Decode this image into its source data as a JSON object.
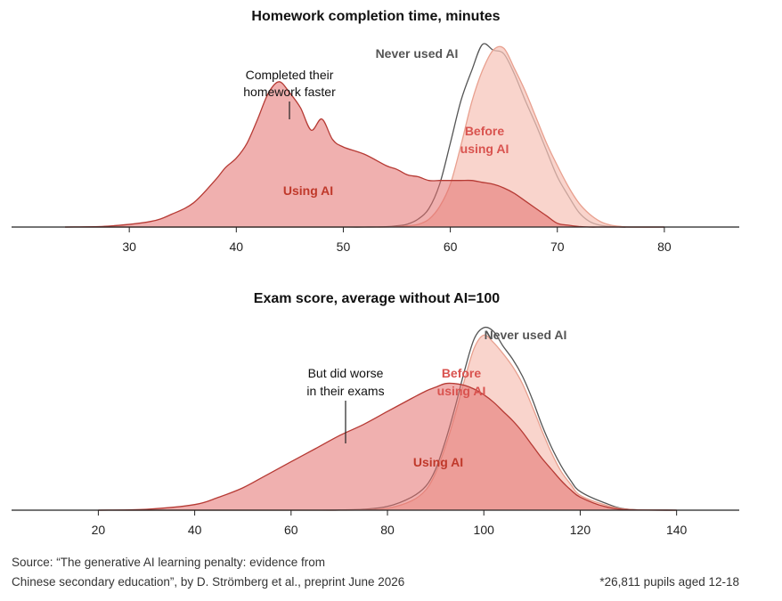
{
  "chart_data": [
    {
      "type": "area",
      "title": "Homework completion time, minutes",
      "xlabel": "",
      "ylabel": "",
      "xlim": [
        19,
        87
      ],
      "x_ticks": [
        30,
        40,
        50,
        60,
        70,
        80
      ],
      "y_axis_shown": false,
      "grid": false,
      "legend": "direct labels",
      "annotation": "Completed their homework faster",
      "x": [
        24,
        28,
        32,
        34,
        36,
        38,
        39,
        40,
        41,
        42,
        43,
        44,
        45,
        46,
        47,
        48,
        49,
        50,
        52,
        54,
        55,
        56,
        57,
        58,
        59,
        60,
        61,
        62,
        63,
        64,
        65,
        66,
        67,
        68,
        69,
        70,
        71,
        72,
        73,
        74,
        75,
        76,
        77,
        80
      ],
      "series": [
        {
          "name": "Never used AI",
          "color": "#555555",
          "values": [
            0,
            0,
            0,
            0,
            0,
            0,
            0,
            0,
            0,
            0,
            0,
            0,
            0,
            0,
            0,
            0,
            0,
            0,
            0,
            0.2,
            0.6,
            1.6,
            4.3,
            10,
            23,
            45,
            68,
            84,
            98,
            95,
            93,
            82,
            68,
            55,
            41,
            27,
            17,
            8,
            3,
            1,
            0.3,
            0,
            0,
            0
          ]
        },
        {
          "name": "Before using AI",
          "color": "#f2b3a6",
          "values": [
            0,
            0,
            0,
            0,
            0,
            0,
            0,
            0,
            0,
            0,
            0,
            0,
            0,
            0,
            0,
            0,
            0,
            0,
            0,
            0,
            0.2,
            0.6,
            1.5,
            4.2,
            11,
            23,
            44,
            67,
            84,
            95,
            96,
            85,
            73,
            59,
            45,
            33,
            22,
            13,
            7,
            3,
            1,
            0.3,
            0,
            0
          ]
        },
        {
          "name": "Using AI",
          "color": "#e06c69",
          "values": [
            0,
            0.5,
            3,
            7,
            13,
            25,
            32,
            37,
            45,
            58,
            72,
            78,
            72,
            64,
            52,
            58,
            47,
            43,
            39,
            33,
            31,
            28,
            27,
            25,
            25,
            25,
            25,
            25,
            24,
            23,
            21,
            18,
            14,
            10,
            6,
            2,
            1,
            0.3,
            0,
            0,
            0,
            0,
            0,
            0
          ]
        }
      ]
    },
    {
      "type": "area",
      "title": "Exam score, average without AI=100",
      "xlabel": "",
      "ylabel": "",
      "xlim": [
        2,
        153
      ],
      "x_ticks": [
        20,
        40,
        60,
        80,
        100,
        120,
        140
      ],
      "y_axis_shown": false,
      "grid": false,
      "legend": "direct labels",
      "annotation": "But did worse in their exams",
      "x": [
        20,
        30,
        40,
        45,
        50,
        55,
        60,
        65,
        70,
        75,
        80,
        85,
        88,
        90,
        92,
        94,
        96,
        98,
        100,
        102,
        104,
        106,
        108,
        110,
        112,
        114,
        116,
        118,
        120,
        125,
        130,
        140
      ],
      "series": [
        {
          "name": "Never used AI",
          "color": "#555555",
          "values": [
            0,
            0,
            0,
            0,
            0,
            0,
            0,
            0,
            0.1,
            0.5,
            2,
            7,
            13,
            22,
            37,
            55,
            75,
            92,
            98,
            96,
            88,
            81,
            72,
            60,
            46,
            34,
            24,
            16,
            10,
            4,
            0.5,
            0
          ]
        },
        {
          "name": "Before using AI",
          "color": "#f2b3a6",
          "values": [
            0,
            0,
            0,
            0,
            0,
            0,
            0,
            0,
            0,
            0.2,
            1,
            5,
            11,
            20,
            34,
            51,
            70,
            87,
            94,
            90,
            84,
            77,
            68,
            56,
            43,
            31,
            21,
            14,
            8,
            3,
            0.4,
            0
          ]
        },
        {
          "name": "Using AI",
          "color": "#e06c69",
          "values": [
            0,
            0.5,
            3,
            7,
            12,
            19,
            26,
            33,
            40,
            46,
            53,
            60,
            64,
            66,
            68,
            68,
            67,
            65,
            62,
            58,
            53,
            48,
            42,
            35,
            28,
            22,
            16,
            11,
            7,
            2,
            0.3,
            0
          ]
        }
      ]
    }
  ],
  "labels": {
    "top": {
      "never": "Never used AI",
      "before_1": "Before",
      "before_2": "using AI",
      "using": "Using AI",
      "annot_1": "Completed their",
      "annot_2": "homework faster"
    },
    "bottom": {
      "never": "Never used AI",
      "before_1": "Before",
      "before_2": "using AI",
      "using": "Using AI",
      "annot_1": "But did worse",
      "annot_2": "in their exams"
    }
  },
  "footer": {
    "source_line1": "Source: “The generative AI learning penalty: evidence from",
    "source_line2": "Chinese secondary education”, by D. Strömberg et al., preprint June 2026",
    "note": "*26,811 pupils aged 12-18"
  }
}
